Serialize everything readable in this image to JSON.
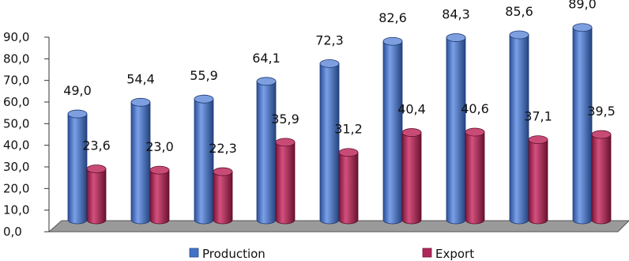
{
  "chart_data": {
    "type": "bar",
    "categories": [
      "",
      "",
      "",
      "",
      "",
      "",
      "",
      "",
      ""
    ],
    "series": [
      {
        "name": "Production",
        "color": "#4472C4",
        "values": [
          49.0,
          54.4,
          55.9,
          64.1,
          72.3,
          82.6,
          84.3,
          85.6,
          89.0
        ],
        "labels": [
          "49,0",
          "54,4",
          "55,9",
          "64,1",
          "72,3",
          "82,6",
          "84,3",
          "85,6",
          "89,0"
        ]
      },
      {
        "name": "Export",
        "color": "#B0285A",
        "values": [
          23.6,
          23.0,
          22.3,
          35.9,
          31.2,
          40.4,
          40.6,
          37.1,
          39.5
        ],
        "labels": [
          "23,6",
          "23,0",
          "22,3",
          "35,9",
          "31,2",
          "40,4",
          "40,6",
          "37,1",
          "39,5"
        ]
      }
    ],
    "ylim": [
      0,
      90
    ],
    "yticks": [
      "0,0",
      "10,0",
      "20,0",
      "30,0",
      "40,0",
      "50,0",
      "60,0",
      "70,0",
      "80,0",
      "90,0"
    ],
    "legend_position": "bottom",
    "style": "3d-cylinder",
    "grid": false
  }
}
